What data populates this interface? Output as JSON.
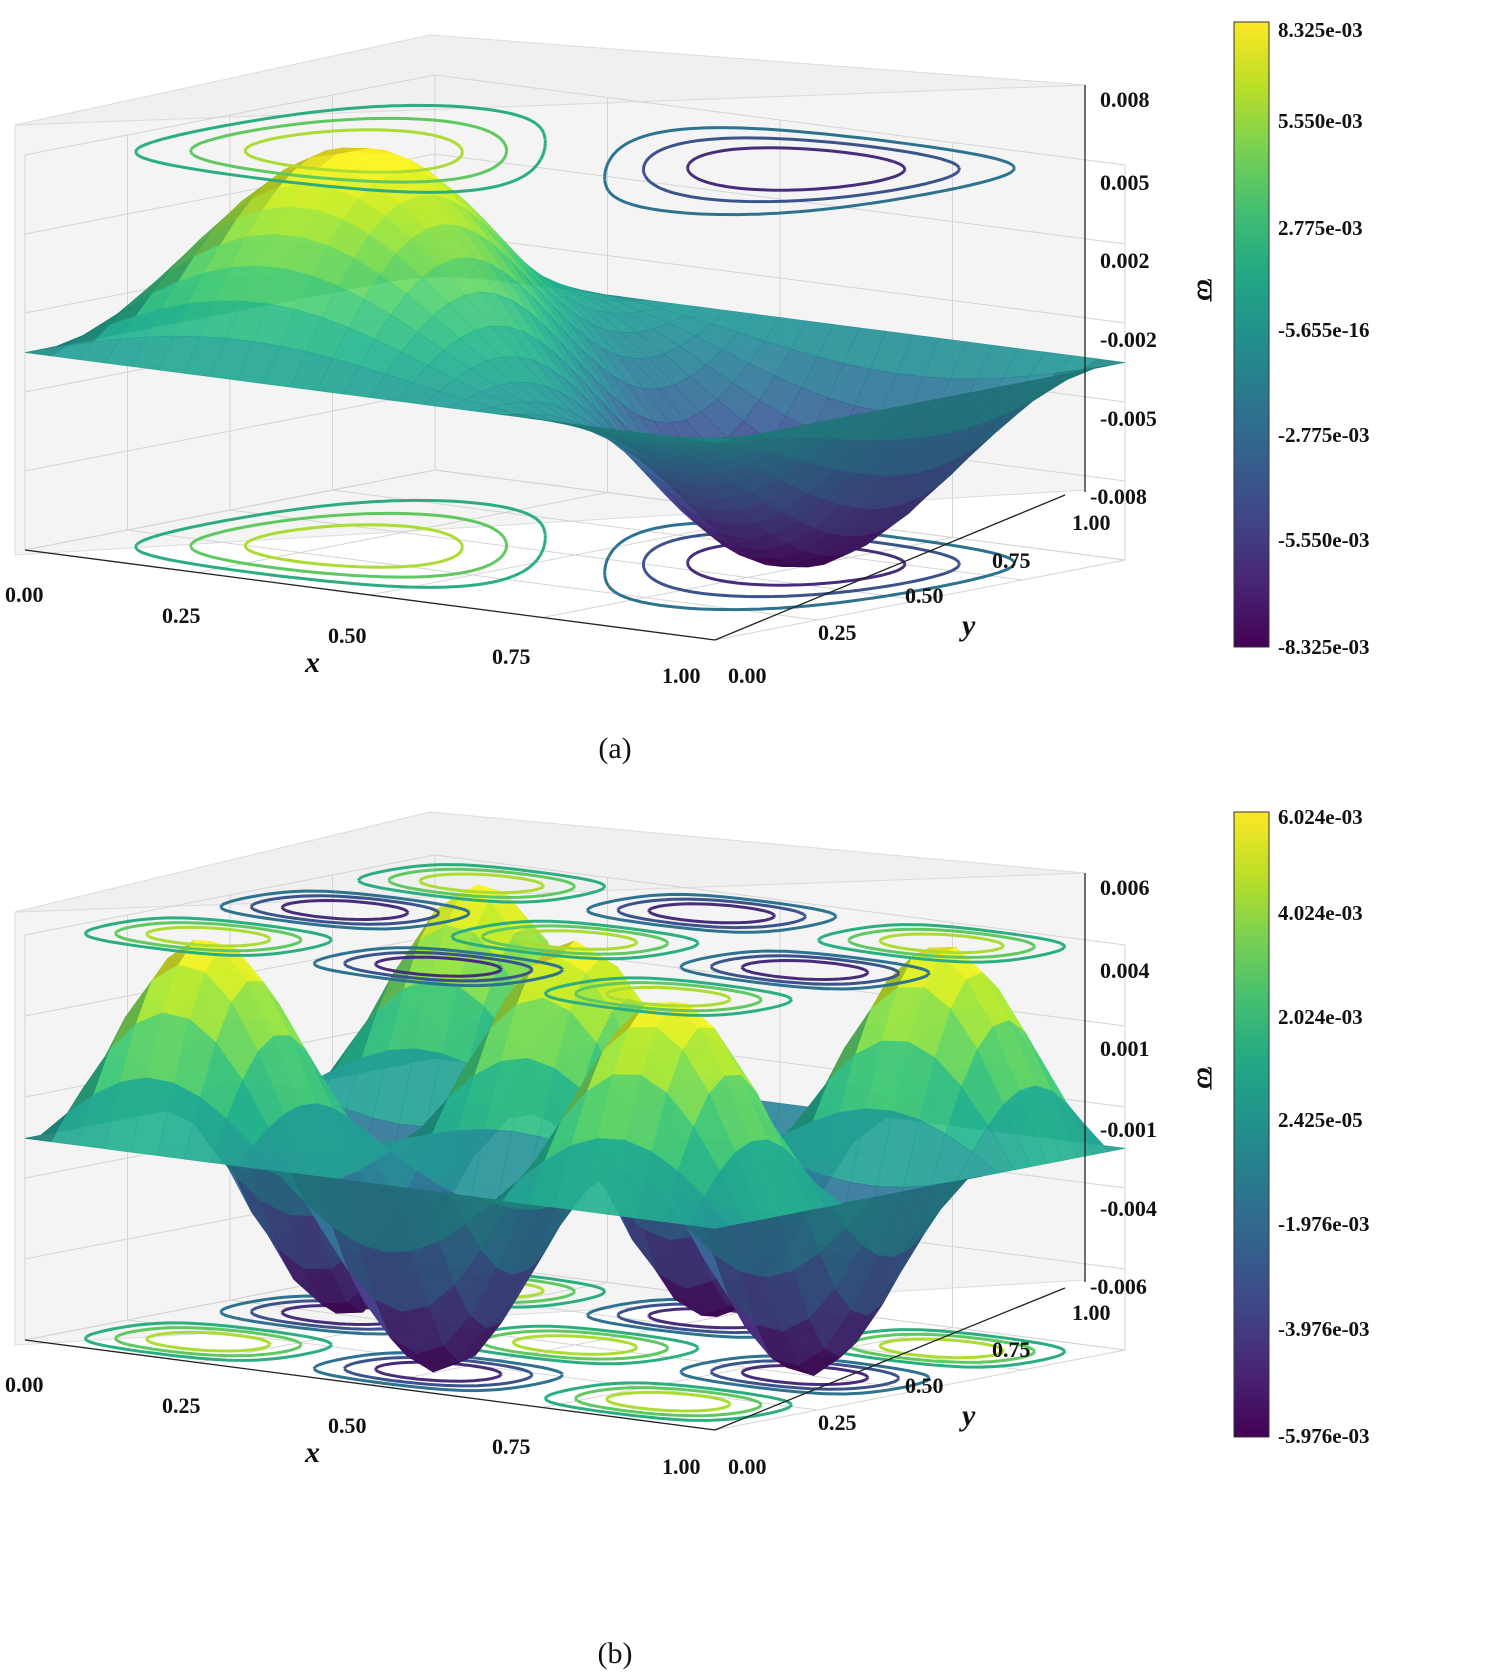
{
  "figure": {
    "panels": [
      "(a)",
      "(b)"
    ]
  },
  "chart_data": [
    {
      "type": "surface3d_with_contours",
      "caption": "(a)",
      "xlabel": "x",
      "ylabel": "y",
      "zlabel": "ϖ",
      "x_ticks": [
        "0.00",
        "0.25",
        "0.50",
        "0.75",
        "1.00"
      ],
      "y_ticks": [
        "0.00",
        "0.25",
        "0.50",
        "0.75",
        "1.00"
      ],
      "z_ticks": [
        "-0.008",
        "-0.005",
        "-0.002",
        "0.002",
        "0.005",
        "0.008"
      ],
      "zlim": [
        -0.008325,
        0.008325
      ],
      "colorbar_ticks": [
        "8.325e-03",
        "5.550e-03",
        "2.775e-03",
        "-5.655e-16",
        "-2.775e-03",
        "-5.550e-03",
        "-8.325e-03"
      ],
      "colormap": "viridis",
      "contours_on": [
        "top",
        "bottom"
      ],
      "surface_modes": [
        [
          1,
          1
        ],
        [
          2,
          1
        ]
      ],
      "surface_amplitude": 0.008325,
      "peak_value": 0.008325,
      "trough_value": -0.008325
    },
    {
      "type": "surface3d_with_contours",
      "caption": "(b)",
      "xlabel": "x",
      "ylabel": "y",
      "zlabel": "ϖ",
      "x_ticks": [
        "0.00",
        "0.25",
        "0.50",
        "0.75",
        "1.00"
      ],
      "y_ticks": [
        "0.00",
        "0.25",
        "0.50",
        "0.75",
        "1.00"
      ],
      "z_ticks": [
        "-0.006",
        "-0.004",
        "-0.001",
        "0.001",
        "0.004",
        "0.006"
      ],
      "zlim": [
        -0.005976,
        0.006024
      ],
      "colorbar_ticks": [
        "6.024e-03",
        "4.024e-03",
        "2.024e-03",
        "2.425e-05",
        "-1.976e-03",
        "-3.976e-03",
        "-5.976e-03"
      ],
      "colormap": "viridis",
      "contours_on": [
        "top",
        "bottom"
      ],
      "surface_modes": [
        [
          3,
          3
        ]
      ],
      "surface_amplitude": 0.006,
      "peak_value": 0.006024,
      "trough_value": -0.005976
    }
  ]
}
